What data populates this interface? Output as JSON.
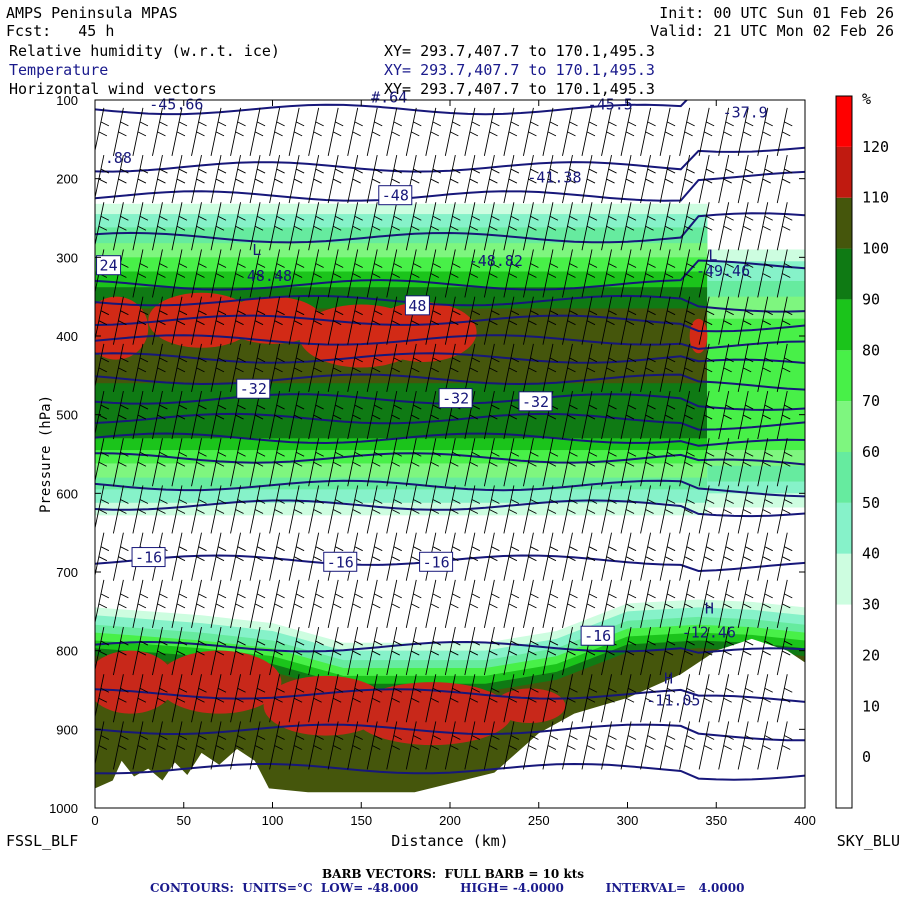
{
  "header": {
    "model": "AMPS Peninsula MPAS",
    "fcst_label": "Fcst:",
    "fcst_value": "45 h",
    "init_label": "Init:",
    "init_value": "00 UTC Sun 01 Feb 26",
    "valid_label": "Valid:",
    "valid_value": "21 UTC Mon 02 Feb 26"
  },
  "layers": [
    {
      "name": "Relative humidity (w.r.t. ice)",
      "xy": "XY= 293.7,407.7 to 170.1,495.3",
      "color": "#000000"
    },
    {
      "name": "Temperature",
      "xy": "XY= 293.7,407.7 to 170.1,495.3",
      "color": "#1a1a8c"
    },
    {
      "name": "Horizontal wind vectors",
      "xy": "XY= 293.7,407.7 to 170.1,495.3",
      "color": "#000000"
    }
  ],
  "chart_data": {
    "type": "heatmap",
    "xlabel": "Distance (km)",
    "ylabel": "Pressure (hPa)",
    "xlim": [
      0,
      400
    ],
    "ylim": [
      1000,
      100
    ],
    "x_ticks": [
      0,
      50,
      100,
      150,
      200,
      250,
      300,
      350,
      400
    ],
    "y_ticks": [
      100,
      200,
      300,
      400,
      500,
      600,
      700,
      800,
      900,
      1000
    ],
    "left_endpoint": "FSSL_BLF",
    "right_endpoint": "SKY_BLU",
    "colorbar": {
      "unit": "%",
      "levels": [
        0,
        10,
        20,
        30,
        40,
        50,
        60,
        70,
        80,
        90,
        100,
        110,
        120
      ],
      "colors": [
        "#ffffff",
        "#ffffff",
        "#ffffff",
        "#ffffff",
        "#cdfde0",
        "#86f2c9",
        "#66eb9f",
        "#7ef67f",
        "#48f048",
        "#1bc41b",
        "#0f7a14",
        "#45560c",
        "#c01a10",
        "#ff0000"
      ]
    },
    "temperature_contours": {
      "units": "°C",
      "low": -48.0,
      "high": -4.0,
      "interval": 4.0,
      "labels": [
        {
          "text": "-45.66",
          "x": 30,
          "p": 112
        },
        {
          "text": "#.64",
          "x": 155,
          "p": 103
        },
        {
          "text": "-45.5",
          "x": 277,
          "p": 112
        },
        {
          "text": "-37.9",
          "x": 353,
          "p": 122
        },
        {
          "text": ".88",
          "x": 5,
          "p": 180
        },
        {
          "text": "-41.38",
          "x": 243,
          "p": 205
        },
        {
          "text": "-48",
          "x": 161,
          "p": 228
        },
        {
          "text": "L",
          "x": 88,
          "p": 297
        },
        {
          "text": "48.48",
          "x": 85,
          "p": 330
        },
        {
          "text": "-48.82",
          "x": 210,
          "p": 311
        },
        {
          "text": "L",
          "x": 345,
          "p": 304
        },
        {
          "text": "-49.46",
          "x": 338,
          "p": 324
        },
        {
          "text": "24",
          "x": 2,
          "p": 317
        },
        {
          "text": "48",
          "x": 176,
          "p": 368
        },
        {
          "text": "-32",
          "x": 81,
          "p": 474
        },
        {
          "text": "-32",
          "x": 195,
          "p": 486
        },
        {
          "text": "-32",
          "x": 240,
          "p": 490
        },
        {
          "text": "-16",
          "x": 22,
          "p": 688
        },
        {
          "text": "-16",
          "x": 130,
          "p": 694
        },
        {
          "text": "-16",
          "x": 184,
          "p": 694
        },
        {
          "text": "H",
          "x": 343,
          "p": 753
        },
        {
          "text": "-16",
          "x": 275,
          "p": 788
        },
        {
          "text": "-12.46",
          "x": 330,
          "p": 783
        },
        {
          "text": "H",
          "x": 320,
          "p": 842
        },
        {
          "text": "-11.05",
          "x": 310,
          "p": 870
        }
      ]
    },
    "barb_vectors": "FULL BARB = 10 kts"
  },
  "footer": {
    "barb_label": "BARB VECTORS:  FULL BARB = 10 kts",
    "contour_label": "CONTOURS:  UNITS=°C  LOW= -48.000          HIGH= -4.0000          INTERVAL=   4.0000"
  }
}
